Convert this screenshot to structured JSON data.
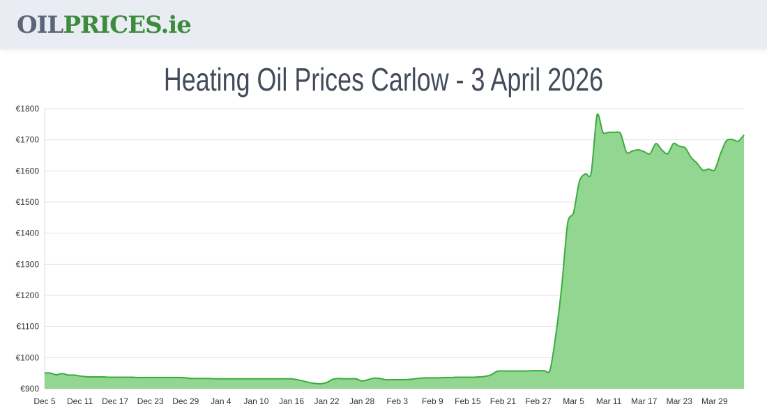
{
  "header": {
    "logo_part1": "OIL",
    "logo_part2": "PRICES.ie"
  },
  "title": "Heating Oil Prices Carlow - 3 April 2026",
  "colors": {
    "line": "#3aac3a",
    "fill": "#92d692",
    "grid": "#e3e3e3",
    "logo_gray": "#5b6577",
    "logo_green": "#3b8c3d"
  },
  "chart_data": {
    "type": "area",
    "title": "",
    "xlabel": "",
    "ylabel": "",
    "ylim": [
      900,
      1800
    ],
    "grid": true,
    "y_ticks": [
      "€900",
      "€1000",
      "€1100",
      "€1200",
      "€1300",
      "€1400",
      "€1500",
      "€1600",
      "€1700",
      "€1800"
    ],
    "x_ticks": [
      "Dec 5",
      "Dec 11",
      "Dec 17",
      "Dec 23",
      "Dec 29",
      "Jan 4",
      "Jan 10",
      "Jan 16",
      "Jan 22",
      "Jan 28",
      "Feb 3",
      "Feb 9",
      "Feb 15",
      "Feb 21",
      "Feb 27",
      "Mar 5",
      "Mar 11",
      "Mar 17",
      "Mar 23",
      "Mar 29"
    ],
    "x": [
      "Dec 5",
      "Dec 6",
      "Dec 7",
      "Dec 8",
      "Dec 9",
      "Dec 10",
      "Dec 11",
      "Dec 12",
      "Dec 13",
      "Dec 14",
      "Dec 15",
      "Dec 16",
      "Dec 17",
      "Dec 18",
      "Dec 19",
      "Dec 20",
      "Dec 21",
      "Dec 22",
      "Dec 23",
      "Dec 24",
      "Dec 25",
      "Dec 26",
      "Dec 27",
      "Dec 28",
      "Dec 29",
      "Dec 30",
      "Dec 31",
      "Jan 1",
      "Jan 2",
      "Jan 3",
      "Jan 4",
      "Jan 5",
      "Jan 6",
      "Jan 7",
      "Jan 8",
      "Jan 9",
      "Jan 10",
      "Jan 11",
      "Jan 12",
      "Jan 13",
      "Jan 14",
      "Jan 15",
      "Jan 16",
      "Jan 17",
      "Jan 18",
      "Jan 19",
      "Jan 20",
      "Jan 21",
      "Jan 22",
      "Jan 23",
      "Jan 24",
      "Jan 25",
      "Jan 26",
      "Jan 27",
      "Jan 28",
      "Jan 29",
      "Jan 30",
      "Jan 31",
      "Feb 1",
      "Feb 2",
      "Feb 3",
      "Feb 4",
      "Feb 5",
      "Feb 6",
      "Feb 7",
      "Feb 8",
      "Feb 9",
      "Feb 10",
      "Feb 11",
      "Feb 12",
      "Feb 13",
      "Feb 14",
      "Feb 15",
      "Feb 16",
      "Feb 17",
      "Feb 18",
      "Feb 19",
      "Feb 20",
      "Feb 21",
      "Feb 22",
      "Feb 23",
      "Feb 24",
      "Feb 25",
      "Feb 26",
      "Feb 27",
      "Feb 28",
      "Mar 1",
      "Mar 2",
      "Mar 3",
      "Mar 4",
      "Mar 5",
      "Mar 6",
      "Mar 7",
      "Mar 8",
      "Mar 9",
      "Mar 10",
      "Mar 11",
      "Mar 12",
      "Mar 13",
      "Mar 14",
      "Mar 15",
      "Mar 16",
      "Mar 17",
      "Mar 18",
      "Mar 19",
      "Mar 20",
      "Mar 21",
      "Mar 22",
      "Mar 23",
      "Mar 24",
      "Mar 25",
      "Mar 26",
      "Mar 27",
      "Mar 28",
      "Mar 29",
      "Mar 30",
      "Mar 31",
      "Apr 1",
      "Apr 2",
      "Apr 3"
    ],
    "values": [
      951,
      950,
      945,
      949,
      944,
      944,
      941,
      939,
      938,
      938,
      938,
      937,
      937,
      937,
      937,
      937,
      936,
      936,
      936,
      936,
      936,
      936,
      936,
      936,
      935,
      933,
      933,
      933,
      933,
      932,
      932,
      932,
      932,
      932,
      932,
      932,
      932,
      932,
      932,
      932,
      932,
      932,
      932,
      929,
      925,
      920,
      917,
      916,
      920,
      930,
      933,
      932,
      932,
      932,
      925,
      929,
      934,
      933,
      929,
      929,
      929,
      929,
      930,
      932,
      934,
      935,
      935,
      935,
      936,
      936,
      937,
      937,
      937,
      937,
      938,
      940,
      945,
      956,
      957,
      957,
      957,
      957,
      957,
      958,
      958,
      958,
      960,
      1075,
      1231,
      1433,
      1466,
      1567,
      1591,
      1593,
      1780,
      1724,
      1724,
      1724,
      1720,
      1660,
      1664,
      1668,
      1662,
      1655,
      1688,
      1668,
      1655,
      1688,
      1679,
      1674,
      1643,
      1625,
      1602,
      1606,
      1603,
      1655,
      1697,
      1701,
      1695,
      1716
    ]
  }
}
